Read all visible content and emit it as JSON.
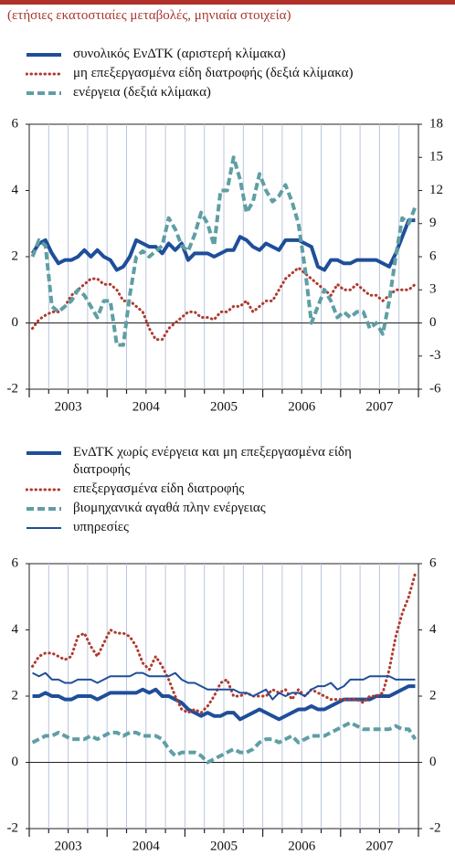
{
  "subtitle": "(ετήσιες εκατοστιαίες μεταβολές, μηνιαία στοιχεία)",
  "chart_data": [
    {
      "type": "line",
      "categories": [
        null,
        null,
        null,
        null,
        null,
        "2003",
        null,
        null,
        null,
        null,
        null,
        null,
        null,
        null,
        null,
        null,
        null,
        "2004",
        null,
        null,
        null,
        null,
        null,
        null,
        null,
        null,
        null,
        null,
        null,
        "2005",
        null,
        null,
        null,
        null,
        null,
        null,
        null,
        null,
        null,
        null,
        null,
        "2006",
        null,
        null,
        null,
        null,
        null,
        null,
        null,
        null,
        null,
        null,
        null,
        "2007",
        null,
        null,
        null,
        null,
        null,
        null
      ],
      "ylim": [
        -2,
        6
      ],
      "yticks": [
        -2,
        0,
        2,
        4,
        6
      ],
      "y2lim": [
        -6,
        18
      ],
      "y2ticks": [
        -6,
        -3,
        0,
        3,
        6,
        9,
        12,
        15,
        18
      ],
      "grid": true,
      "series": [
        {
          "name": "συνολικός ΕνΔΤΚ (αριστερή κλίμακα)",
          "color": "#1f4e9a",
          "style": "solid",
          "width": 4,
          "values": [
            2.1,
            2.4,
            2.5,
            2.1,
            1.8,
            1.9,
            1.9,
            2.0,
            2.2,
            2.0,
            2.2,
            2.0,
            1.9,
            1.6,
            1.7,
            2.0,
            2.5,
            2.4,
            2.3,
            2.3,
            2.1,
            2.4,
            2.2,
            2.4,
            1.9,
            2.1,
            2.1,
            2.1,
            2.0,
            2.1,
            2.2,
            2.2,
            2.6,
            2.5,
            2.3,
            2.2,
            2.4,
            2.3,
            2.2,
            2.5,
            2.5,
            2.5,
            2.4,
            2.3,
            1.7,
            1.6,
            1.9,
            1.9,
            1.8,
            1.8,
            1.9,
            1.9,
            1.9,
            1.9,
            1.8,
            1.7,
            2.1,
            2.6,
            3.1,
            3.1
          ]
        },
        {
          "name": "μη επεξεργασμένα είδη διατροφής (δεξιά κλίμακα)",
          "color": "#b03a2e",
          "style": "dotted",
          "width": 3,
          "axis": "y2",
          "values": [
            -0.5,
            0.3,
            0.7,
            1.0,
            1.0,
            1.5,
            2.5,
            3.0,
            3.5,
            4.0,
            4.0,
            3.5,
            3.5,
            3.0,
            2.0,
            2.0,
            1.5,
            1.0,
            -0.5,
            -1.5,
            -1.5,
            -0.5,
            0.0,
            0.5,
            1.0,
            1.0,
            0.5,
            0.5,
            0.3,
            1.0,
            1.0,
            1.5,
            1.5,
            2.0,
            1.0,
            1.5,
            2.0,
            2.0,
            3.0,
            4.0,
            4.5,
            5.0,
            4.5,
            4.0,
            3.5,
            3.0,
            2.5,
            3.5,
            3.0,
            3.0,
            3.5,
            3.0,
            2.5,
            2.5,
            2.0,
            2.5,
            3.0,
            3.0,
            3.0,
            3.5
          ]
        },
        {
          "name": "ενέργεια (δεξιά κλίμακα)",
          "color": "#5f9ea4",
          "style": "dashed",
          "width": 4,
          "axis": "y2",
          "values": [
            6.0,
            7.5,
            7.0,
            1.5,
            1.0,
            1.5,
            2.0,
            3.0,
            2.5,
            1.5,
            0.5,
            2.0,
            2.0,
            -2.0,
            -2.0,
            2.5,
            6.0,
            6.5,
            6.0,
            6.5,
            7.0,
            9.5,
            8.5,
            7.0,
            6.5,
            8.0,
            10.0,
            9.0,
            7.0,
            12.0,
            12.0,
            15.0,
            13.0,
            10.0,
            11.0,
            13.5,
            12.0,
            11.0,
            11.5,
            12.5,
            11.0,
            9.0,
            5.0,
            0.0,
            1.5,
            3.0,
            2.0,
            0.5,
            1.0,
            0.5,
            1.0,
            1.0,
            -0.5,
            0.0,
            -1.0,
            2.0,
            6.0,
            9.5,
            9.0,
            10.5
          ]
        }
      ]
    },
    {
      "type": "line",
      "categories": [
        null,
        null,
        null,
        null,
        null,
        "2003",
        null,
        null,
        null,
        null,
        null,
        null,
        null,
        null,
        null,
        null,
        null,
        "2004",
        null,
        null,
        null,
        null,
        null,
        null,
        null,
        null,
        null,
        null,
        null,
        "2005",
        null,
        null,
        null,
        null,
        null,
        null,
        null,
        null,
        null,
        null,
        null,
        "2006",
        null,
        null,
        null,
        null,
        null,
        null,
        null,
        null,
        null,
        null,
        null,
        "2007",
        null,
        null,
        null,
        null,
        null,
        null
      ],
      "ylim": [
        -2,
        6
      ],
      "yticks": [
        -2,
        0,
        2,
        4,
        6
      ],
      "y2lim": [
        -2,
        6
      ],
      "y2ticks": [
        -2,
        0,
        2,
        4,
        6
      ],
      "grid": true,
      "series": [
        {
          "name": "ΕνΔΤΚ χωρίς ενέργεια και μη επεξεργασμένα είδη διατροφής",
          "color": "#1f4e9a",
          "style": "solid",
          "width": 4,
          "values": [
            2.0,
            2.0,
            2.1,
            2.0,
            2.0,
            1.9,
            1.9,
            2.0,
            2.0,
            2.0,
            1.9,
            2.0,
            2.1,
            2.1,
            2.1,
            2.1,
            2.1,
            2.2,
            2.1,
            2.2,
            2.0,
            2.0,
            1.9,
            1.8,
            1.6,
            1.5,
            1.4,
            1.5,
            1.4,
            1.4,
            1.5,
            1.5,
            1.3,
            1.4,
            1.5,
            1.6,
            1.5,
            1.4,
            1.3,
            1.4,
            1.5,
            1.6,
            1.6,
            1.7,
            1.6,
            1.6,
            1.7,
            1.8,
            1.9,
            1.9,
            1.9,
            1.9,
            1.9,
            2.0,
            2.0,
            2.0,
            2.1,
            2.2,
            2.3,
            2.3
          ]
        },
        {
          "name": "επεξεργασμένα είδη διατροφής",
          "color": "#b03a2e",
          "style": "dotted",
          "width": 3,
          "values": [
            2.9,
            3.2,
            3.3,
            3.3,
            3.2,
            3.1,
            3.2,
            3.8,
            3.9,
            3.5,
            3.2,
            3.6,
            4.0,
            3.9,
            3.9,
            3.8,
            3.5,
            3.0,
            2.8,
            3.2,
            2.9,
            2.5,
            2.0,
            1.6,
            1.5,
            1.6,
            1.5,
            1.7,
            2.0,
            2.4,
            2.5,
            2.0,
            2.0,
            2.1,
            2.0,
            2.0,
            2.0,
            2.2,
            2.1,
            2.2,
            1.9,
            2.2,
            2.0,
            2.2,
            2.1,
            2.0,
            1.9,
            1.9,
            1.9,
            1.9,
            1.9,
            1.8,
            2.0,
            2.0,
            2.1,
            2.8,
            3.8,
            4.5,
            5.0,
            5.7
          ]
        },
        {
          "name": "βιομηχανικά αγαθά πλην ενέργειας",
          "color": "#5f9ea4",
          "style": "dashed",
          "width": 4,
          "values": [
            0.6,
            0.7,
            0.8,
            0.8,
            0.9,
            0.8,
            0.7,
            0.7,
            0.7,
            0.8,
            0.7,
            0.8,
            0.9,
            0.9,
            0.8,
            0.9,
            0.9,
            0.8,
            0.8,
            0.8,
            0.7,
            0.4,
            0.2,
            0.3,
            0.3,
            0.3,
            0.2,
            0.0,
            0.1,
            0.2,
            0.3,
            0.4,
            0.3,
            0.3,
            0.4,
            0.6,
            0.7,
            0.7,
            0.6,
            0.7,
            0.8,
            0.6,
            0.7,
            0.8,
            0.8,
            0.8,
            0.9,
            1.0,
            1.1,
            1.2,
            1.1,
            1.0,
            1.0,
            1.0,
            1.0,
            1.0,
            1.1,
            1.0,
            1.0,
            0.7
          ]
        },
        {
          "name": "υπηρεσίες",
          "color": "#1f4e9a",
          "style": "solid",
          "width": 2,
          "values": [
            2.7,
            2.6,
            2.7,
            2.5,
            2.5,
            2.4,
            2.4,
            2.5,
            2.5,
            2.5,
            2.4,
            2.5,
            2.6,
            2.6,
            2.6,
            2.6,
            2.7,
            2.7,
            2.6,
            2.6,
            2.6,
            2.6,
            2.7,
            2.5,
            2.4,
            2.4,
            2.3,
            2.2,
            2.2,
            2.2,
            2.2,
            2.2,
            2.1,
            2.1,
            2.0,
            2.1,
            2.2,
            1.9,
            2.1,
            2.0,
            2.1,
            2.1,
            2.0,
            2.2,
            2.3,
            2.3,
            2.4,
            2.2,
            2.3,
            2.5,
            2.5,
            2.5,
            2.6,
            2.6,
            2.6,
            2.6,
            2.5,
            2.5,
            2.5,
            2.5
          ]
        }
      ]
    }
  ]
}
